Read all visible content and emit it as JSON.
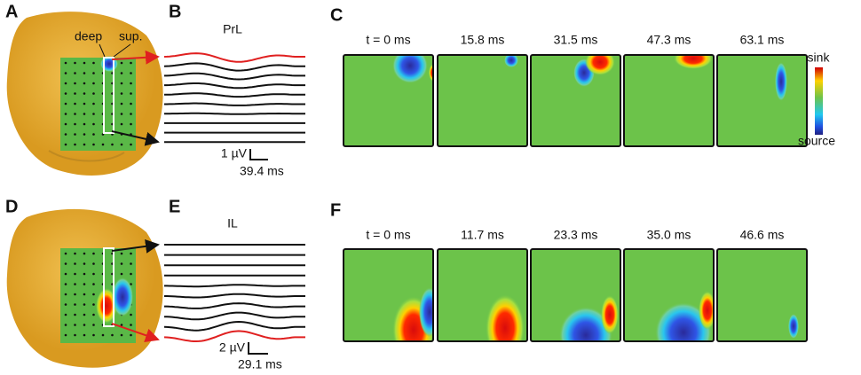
{
  "panel_a": {
    "letter": "A",
    "deep": "deep",
    "superficial": "sup."
  },
  "panel_b": {
    "letter": "B",
    "region": "PrL",
    "scale_amplitude": "1 µV",
    "scale_time": "39.4 ms"
  },
  "panel_c": {
    "letter": "C",
    "frame_times": [
      "t = 0 ms",
      "15.8 ms",
      "31.5 ms",
      "47.3 ms",
      "63.1 ms"
    ],
    "colorbar_top": "sink",
    "colorbar_bottom": "source"
  },
  "panel_d": {
    "letter": "D"
  },
  "panel_e": {
    "letter": "E",
    "region": "IL",
    "scale_amplitude": "2 µV",
    "scale_time": "29.1 ms"
  },
  "panel_f": {
    "letter": "F",
    "frame_times": [
      "t = 0 ms",
      "11.7 ms",
      "23.3 ms",
      "35.0 ms",
      "46.6 ms"
    ]
  }
}
